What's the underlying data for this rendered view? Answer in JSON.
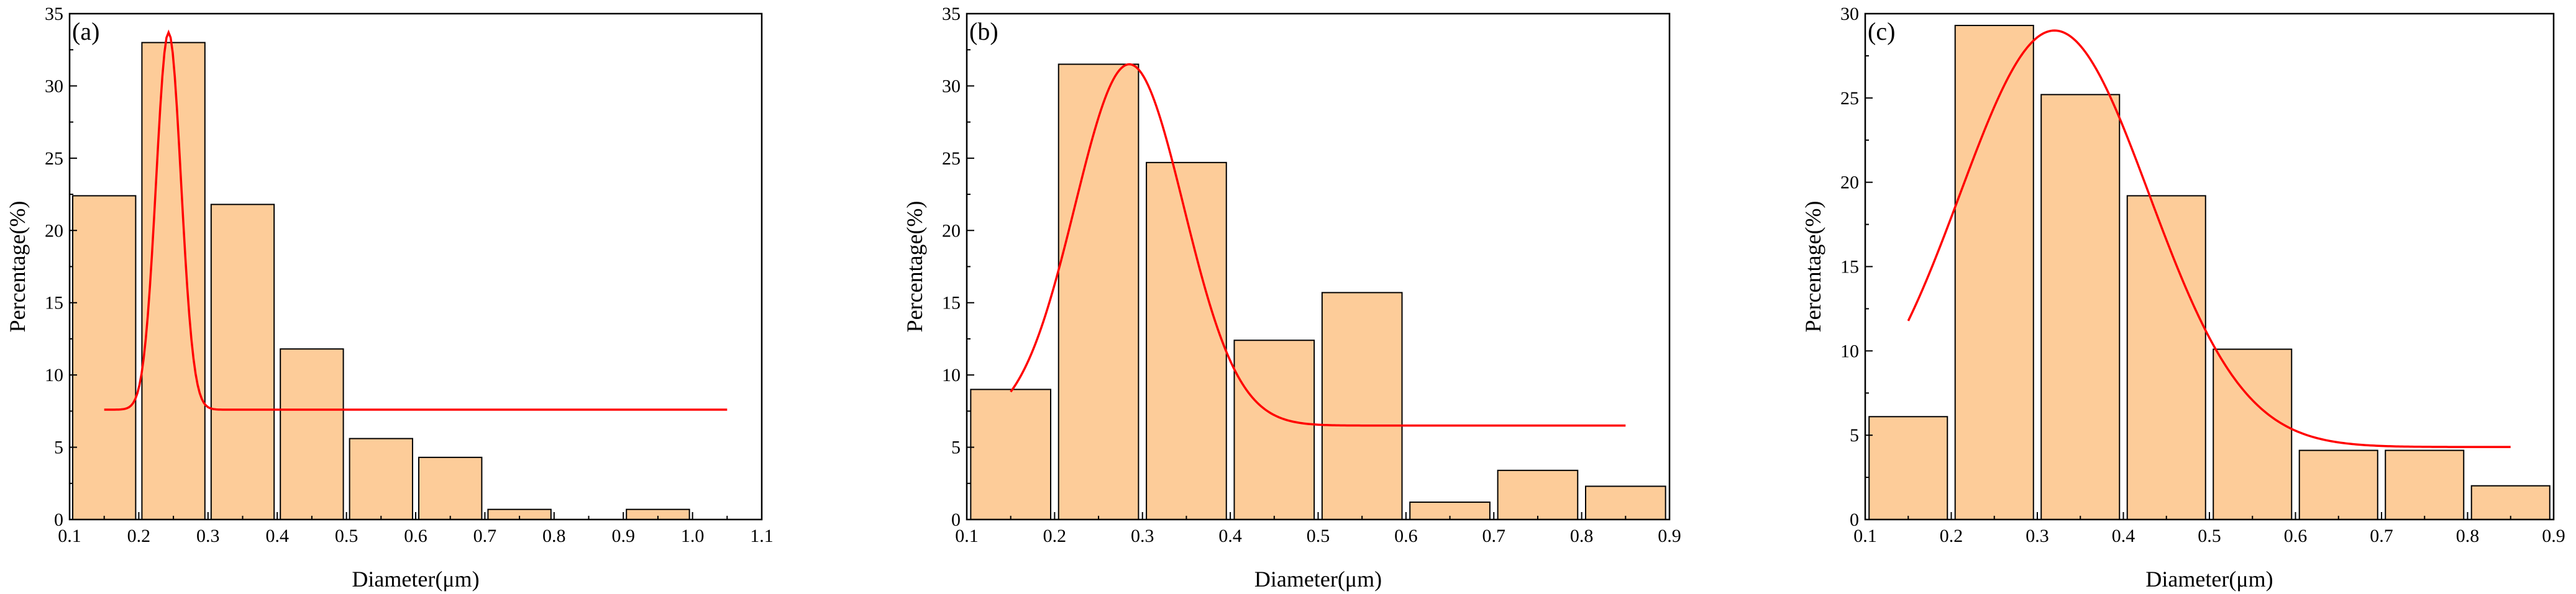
{
  "chart_data": [
    {
      "type": "bar",
      "panel_label": "(a)",
      "xlabel": "Diameter(μm)",
      "ylabel": "Percentage(%)",
      "xlim": [
        0.1,
        1.1
      ],
      "ylim": [
        0,
        35
      ],
      "xticks": [
        "0.1",
        "0.2",
        "0.3",
        "0.4",
        "0.5",
        "0.6",
        "0.7",
        "0.8",
        "0.9",
        "1.0",
        "1.1"
      ],
      "yticks": [
        "0",
        "5",
        "10",
        "15",
        "20",
        "25",
        "30",
        "35"
      ],
      "bar_centers": [
        0.15,
        0.25,
        0.35,
        0.45,
        0.55,
        0.65,
        0.75,
        0.85,
        0.95
      ],
      "bar_width": 0.1,
      "values": [
        22.4,
        33.0,
        21.8,
        11.8,
        5.6,
        4.3,
        0.7,
        0,
        0.7
      ],
      "bar_color": "#FDCC99",
      "fit_curve": {
        "type": "gaussian",
        "color": "#FF0000",
        "x_range": [
          0.15,
          1.05
        ],
        "baseline": 7.6,
        "peak_x": 0.243,
        "peak_y": 33.7,
        "sigma": 0.018
      },
      "grid": false
    },
    {
      "type": "bar",
      "panel_label": "(b)",
      "xlabel": "Diameter(μm)",
      "ylabel": "Percentage(%)",
      "xlim": [
        0.1,
        0.9
      ],
      "ylim": [
        0,
        35
      ],
      "xticks": [
        "0.1",
        "0.2",
        "0.3",
        "0.4",
        "0.5",
        "0.6",
        "0.7",
        "0.8",
        "0.9"
      ],
      "yticks": [
        "0",
        "5",
        "10",
        "15",
        "20",
        "25",
        "30",
        "35"
      ],
      "bar_centers": [
        0.15,
        0.25,
        0.35,
        0.45,
        0.55,
        0.65,
        0.75,
        0.85
      ],
      "bar_width": 0.1,
      "values": [
        9.0,
        31.5,
        24.7,
        12.4,
        15.7,
        1.2,
        3.4,
        2.3
      ],
      "bar_color": "#FDCC99",
      "fit_curve": {
        "type": "gaussian",
        "color": "#FF0000",
        "x_range": [
          0.15,
          0.85
        ],
        "baseline": 6.5,
        "peak_x": 0.285,
        "peak_y": 31.5,
        "sigma": 0.062
      },
      "grid": false
    },
    {
      "type": "bar",
      "panel_label": "(c)",
      "xlabel": "Diameter(μm)",
      "ylabel": "Percentage(%)",
      "xlim": [
        0.1,
        0.9
      ],
      "ylim": [
        0,
        30
      ],
      "xticks": [
        "0.1",
        "0.2",
        "0.3",
        "0.4",
        "0.5",
        "0.6",
        "0.7",
        "0.8",
        "0.9"
      ],
      "yticks": [
        "0",
        "5",
        "10",
        "15",
        "20",
        "25",
        "30"
      ],
      "bar_centers": [
        0.15,
        0.25,
        0.35,
        0.45,
        0.55,
        0.65,
        0.75,
        0.85
      ],
      "bar_width": 0.1,
      "values": [
        6.1,
        29.3,
        25.2,
        19.2,
        10.1,
        4.1,
        4.1,
        2.0
      ],
      "bar_color": "#FDCC99",
      "fit_curve": {
        "type": "gaussian",
        "color": "#FF0000",
        "x_range": [
          0.15,
          0.85
        ],
        "baseline": 4.3,
        "peak_x": 0.32,
        "peak_y": 29.0,
        "sigma": 0.11
      },
      "grid": false
    }
  ]
}
